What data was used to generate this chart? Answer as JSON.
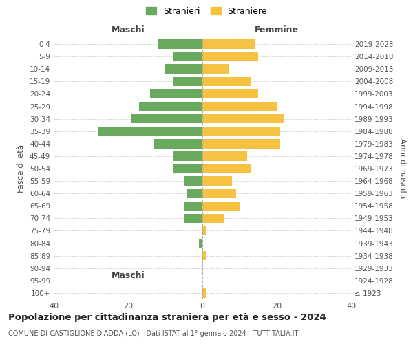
{
  "age_groups": [
    "100+",
    "95-99",
    "90-94",
    "85-89",
    "80-84",
    "75-79",
    "70-74",
    "65-69",
    "60-64",
    "55-59",
    "50-54",
    "45-49",
    "40-44",
    "35-39",
    "30-34",
    "25-29",
    "20-24",
    "15-19",
    "10-14",
    "5-9",
    "0-4"
  ],
  "birth_years": [
    "≤ 1923",
    "1924-1928",
    "1929-1933",
    "1934-1938",
    "1939-1943",
    "1944-1948",
    "1949-1953",
    "1954-1958",
    "1959-1963",
    "1964-1968",
    "1969-1973",
    "1974-1978",
    "1979-1983",
    "1984-1988",
    "1989-1993",
    "1994-1998",
    "1999-2003",
    "2004-2008",
    "2009-2013",
    "2014-2018",
    "2019-2023"
  ],
  "maschi": [
    0,
    0,
    0,
    0,
    1,
    0,
    5,
    5,
    4,
    5,
    8,
    8,
    13,
    28,
    19,
    17,
    14,
    8,
    10,
    8,
    12
  ],
  "femmine": [
    1,
    0,
    0,
    1,
    0,
    1,
    6,
    10,
    9,
    8,
    13,
    12,
    21,
    21,
    22,
    20,
    15,
    13,
    7,
    15,
    14
  ],
  "color_maschi": "#6aaa5e",
  "color_femmine": "#f5c242",
  "xlim": 40,
  "title": "Popolazione per cittadinanza straniera per età e sesso - 2024",
  "subtitle": "COMUNE DI CASTIGLIONE D'ADDA (LO) - Dati ISTAT al 1° gennaio 2024 - TUTTITALIA.IT",
  "ylabel_left": "Fasce di età",
  "ylabel_right": "Anni di nascita",
  "legend_maschi": "Stranieri",
  "legend_femmine": "Straniere",
  "label_maschi": "Maschi",
  "label_femmine": "Femmine",
  "background_color": "#ffffff",
  "grid_color": "#cccccc"
}
